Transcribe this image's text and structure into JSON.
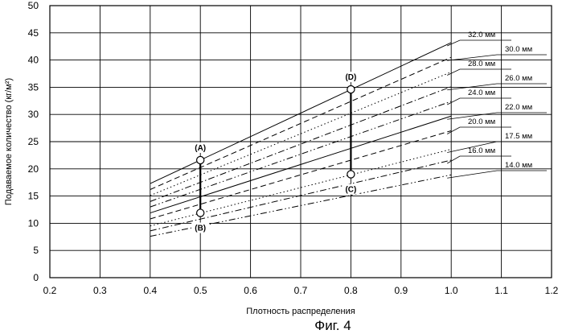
{
  "figure": {
    "caption": "Фиг. 4"
  },
  "chart_data": {
    "type": "line",
    "xlabel": "Плотность распределения",
    "ylabel": "Подаваемое количество (кг/м²)",
    "xlim": [
      0.2,
      1.2
    ],
    "ylim": [
      0,
      50
    ],
    "xticks": [
      "0.2",
      "0.3",
      "0.4",
      "0.5",
      "0.6",
      "0.7",
      "0.8",
      "0.9",
      "1.0",
      "1.1",
      "1.2"
    ],
    "yticks": [
      "0",
      "5",
      "10",
      "15",
      "20",
      "25",
      "30",
      "35",
      "40",
      "45",
      "50"
    ],
    "grid": true,
    "series": [
      {
        "name": "32.0 мм",
        "style": "solid",
        "x": [
          0.4,
          1.0
        ],
        "y": [
          17.3,
          43.2
        ]
      },
      {
        "name": "30.0 мм",
        "style": "dashed",
        "x": [
          0.4,
          1.0
        ],
        "y": [
          16.2,
          40.5
        ]
      },
      {
        "name": "28.0 мм",
        "style": "dotted",
        "x": [
          0.4,
          1.0
        ],
        "y": [
          15.1,
          37.8
        ]
      },
      {
        "name": "26.0 мм",
        "style": "dashdot",
        "x": [
          0.4,
          1.0
        ],
        "y": [
          14.0,
          35.1
        ]
      },
      {
        "name": "24.0 мм",
        "style": "dashdotdot",
        "x": [
          0.4,
          1.0
        ],
        "y": [
          13.0,
          32.4
        ]
      },
      {
        "name": "22.0 мм",
        "style": "solid",
        "x": [
          0.4,
          1.0
        ],
        "y": [
          11.9,
          29.7
        ]
      },
      {
        "name": "20.0 мм",
        "style": "dashed",
        "x": [
          0.4,
          1.0
        ],
        "y": [
          10.8,
          27.0
        ]
      },
      {
        "name": "17.5 мм",
        "style": "dotted",
        "x": [
          0.4,
          1.0
        ],
        "y": [
          9.5,
          23.6
        ]
      },
      {
        "name": "16.0 мм",
        "style": "dashdot",
        "x": [
          0.4,
          1.0
        ],
        "y": [
          8.6,
          21.6
        ]
      },
      {
        "name": "14.0 мм",
        "style": "dashdotdot",
        "x": [
          0.4,
          1.0
        ],
        "y": [
          7.6,
          18.9
        ]
      }
    ],
    "points": [
      {
        "label": "(A)",
        "x": 0.5,
        "y": 21.6,
        "label_pos": "above"
      },
      {
        "label": "(B)",
        "x": 0.5,
        "y": 11.9,
        "label_pos": "below"
      },
      {
        "label": "(D)",
        "x": 0.8,
        "y": 34.6,
        "label_pos": "above"
      },
      {
        "label": "(C)",
        "x": 0.8,
        "y": 19.0,
        "label_pos": "below"
      }
    ],
    "ranges": [
      {
        "x": 0.5,
        "y_from": 11.9,
        "y_to": 21.6
      },
      {
        "x": 0.8,
        "y_from": 19.0,
        "y_to": 34.6
      }
    ]
  }
}
